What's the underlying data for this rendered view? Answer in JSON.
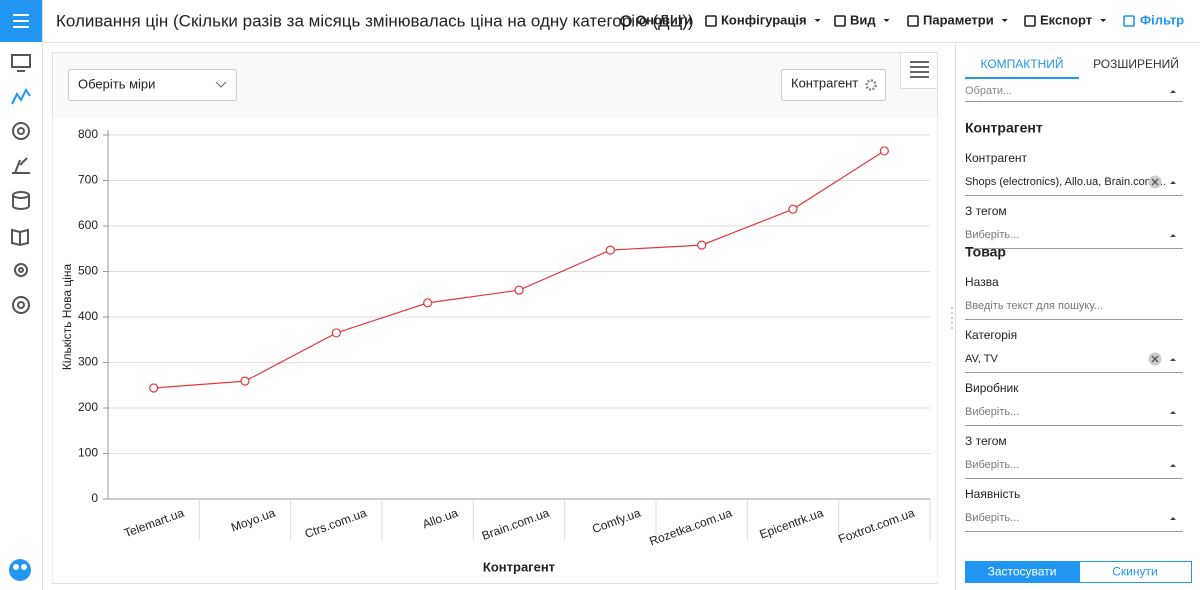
{
  "header": {
    "title": "Коливання цін (Скільки разів за місяць змінювалась ціна на одну категорію (ДЦ))",
    "toolbar": [
      "Оновити",
      "Конфігурація",
      "Вид",
      "Параметри",
      "Експорт",
      "Фільтр"
    ]
  },
  "controls": {
    "measure_select": "Оберіть міри",
    "dimension_button": "Контрагент"
  },
  "chart_data": {
    "type": "line",
    "x_label": "Контрагент",
    "y_label": "Кількість Нова ціна",
    "categories": [
      "Telemart.ua",
      "Moyo.ua",
      "Ctrs.com.ua",
      "Allo.ua",
      "Brain.com.ua",
      "Comfy.ua",
      "Rozetka.com.ua",
      "Epicentrk.ua",
      "Foxtrot.com.ua"
    ],
    "values": [
      244,
      259,
      365,
      431,
      459,
      547,
      558,
      637,
      765
    ],
    "color": "#e0393e",
    "ylim": [
      0,
      800
    ],
    "yticks": [
      0,
      100,
      200,
      300,
      400,
      500,
      600,
      700,
      800
    ],
    "grid": true
  },
  "filters": {
    "tabs": [
      "КОМПАКТНИЙ",
      "РОЗШИРЕНИЙ"
    ],
    "top_value": "Обрати...",
    "sections": [
      {
        "title": "Контрагент",
        "fields": [
          {
            "label": "Контрагент",
            "value": "Shops (electronics), Allo.ua, Brain.com....",
            "clearable": true
          },
          {
            "label": "З тегом",
            "value": "Виберіть..."
          }
        ]
      },
      {
        "title": "Товар",
        "fields": [
          {
            "label": "Назва",
            "value": "Введіть текст для пошуку...",
            "search": true
          },
          {
            "label": "Категорія",
            "value": "AV, TV",
            "clearable": true
          },
          {
            "label": "Виробник",
            "value": "Виберіть..."
          },
          {
            "label": "З тегом",
            "value": "Виберіть..."
          },
          {
            "label": "Наявність",
            "value": "Виберіть..."
          }
        ]
      }
    ],
    "buttons": [
      "Застосувати",
      "Скинути"
    ]
  }
}
